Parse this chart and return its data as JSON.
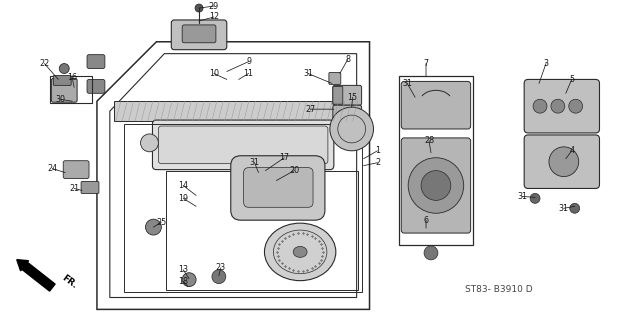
{
  "bg_color": "#ffffff",
  "line_color": "#2a2a2a",
  "text_color": "#1a1a1a",
  "subtitle": "ST83- B3910 D",
  "figsize": [
    6.33,
    3.2
  ],
  "dpi": 100
}
